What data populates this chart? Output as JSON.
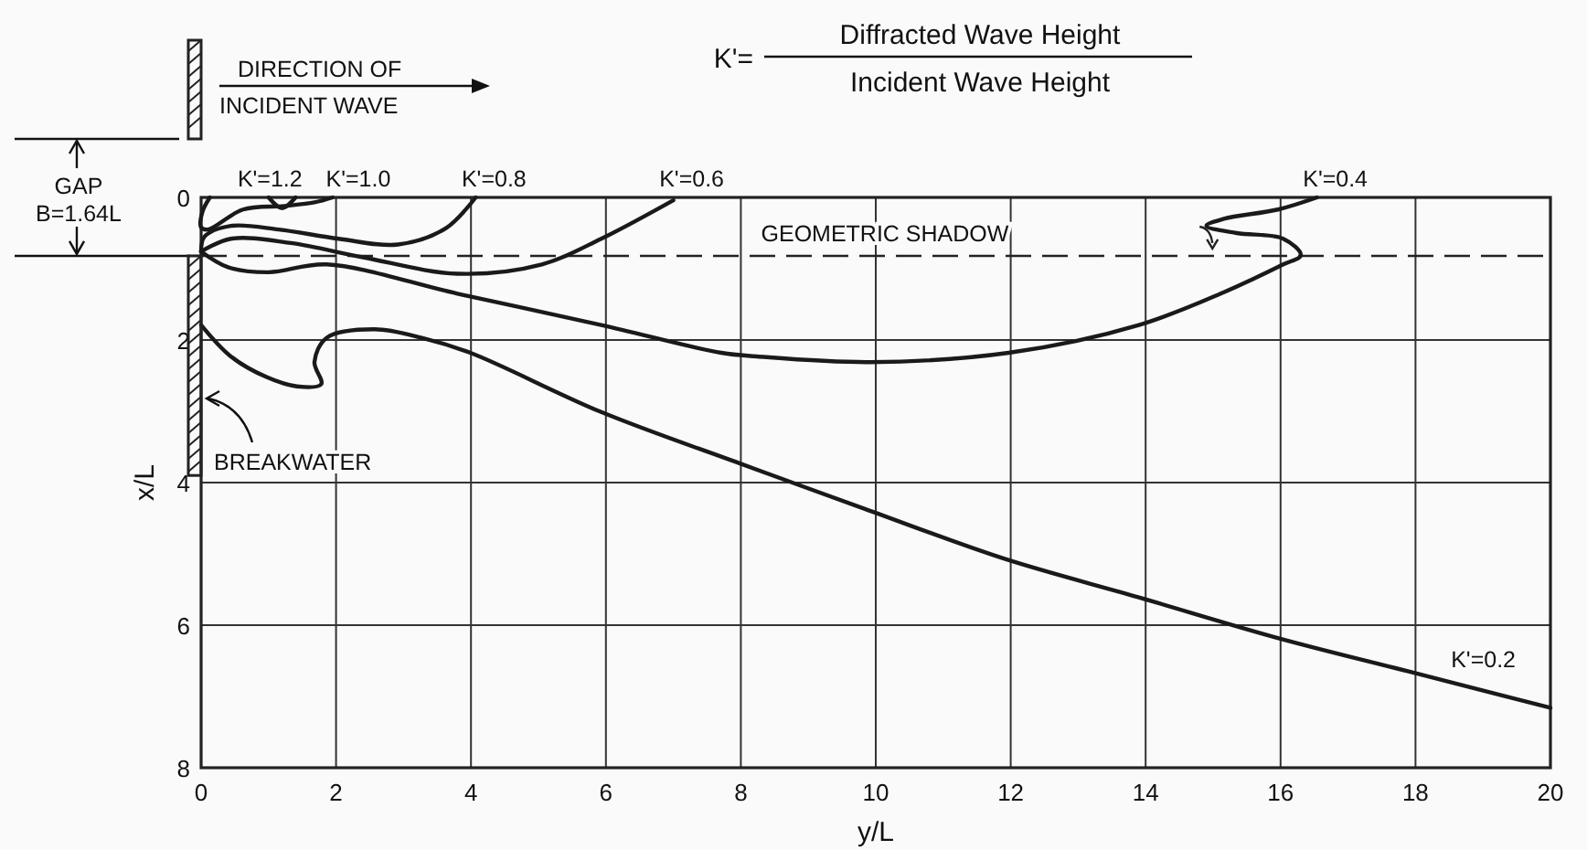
{
  "chart_data": {
    "type": "line",
    "title": "K'=",
    "xlabel": "y/L",
    "ylabel": "x/L",
    "annotations": [
      "Diffracted Wave Height",
      "Incident Wave Height",
      "DIRECTION OF",
      "INCIDENT WAVE",
      "GAP",
      "B=1.64L",
      "BREAKWATER"
    ],
    "xlim": [
      0,
      20
    ],
    "ylim": [
      8,
      0
    ],
    "xticks": [
      0,
      2,
      4,
      6,
      8,
      10,
      12,
      14,
      16,
      18,
      20
    ],
    "yticks": [
      0,
      2,
      4,
      6,
      8
    ],
    "grid": true,
    "line_style": "solid",
    "marker": "none",
    "ref_lines": [
      {
        "axis": "y",
        "value": 0.82,
        "label": "GEOMETRIC SHADOW",
        "line_style": "dashed",
        "color": "#222222"
      }
    ],
    "series": [
      {
        "name": "K'=1.2",
        "color": "#1a1a1a",
        "x": [
          1.0,
          1.2,
          1.4
        ],
        "values": [
          0,
          0.15,
          0
        ]
      },
      {
        "name": "K'=1.0",
        "color": "#1a1a1a",
        "x": [
          0.13,
          0.02,
          0,
          0.1,
          0.62,
          1.24,
          1.68,
          1.95
        ],
        "values": [
          0,
          0.2,
          0.42,
          0.45,
          0.17,
          0.12,
          0.07,
          0
        ]
      },
      {
        "name": "K'=0.8",
        "color": "#1a1a1a",
        "x": [
          0,
          0.05,
          0.44,
          1.15,
          2.04,
          2.92,
          3.63,
          4.07
        ],
        "values": [
          0.76,
          0.55,
          0.4,
          0.45,
          0.58,
          0.66,
          0.43,
          0
        ]
      },
      {
        "name": "K'=0.6",
        "color": "#1a1a1a",
        "x": [
          0,
          0.44,
          1.33,
          2.4,
          3.8,
          5.05,
          5.93,
          7.0
        ],
        "values": [
          0.76,
          0.58,
          0.64,
          0.84,
          1.07,
          0.94,
          0.58,
          0.04
        ]
      },
      {
        "name": "K'=0.4",
        "color": "#1a1a1a",
        "x": [
          0,
          0.4,
          1.0,
          1.86,
          3.8,
          5.93,
          7.71,
          8.24,
          9.92,
          11.97,
          13.9,
          15.16,
          16.04,
          16.3,
          16.04,
          15.35,
          14.9,
          15.16,
          15.96,
          16.54
        ],
        "values": [
          0.76,
          0.98,
          1.05,
          0.94,
          1.35,
          1.79,
          2.18,
          2.23,
          2.31,
          2.18,
          1.79,
          1.33,
          0.94,
          0.81,
          0.58,
          0.5,
          0.4,
          0.3,
          0.17,
          0
        ]
      },
      {
        "name": "K'=0.2",
        "color": "#1a1a1a",
        "x": [
          0,
          0.44,
          0.97,
          1.42,
          1.78,
          1.68,
          1.86,
          2.57,
          3.27,
          3.99,
          5.93,
          7.98,
          9.84,
          11.91,
          13.9,
          15.96,
          17.9,
          20
        ],
        "values": [
          1.79,
          2.23,
          2.52,
          2.65,
          2.62,
          2.31,
          1.97,
          1.85,
          1.97,
          2.18,
          3.01,
          3.73,
          4.37,
          5.07,
          5.61,
          6.18,
          6.65,
          7.16
        ]
      }
    ]
  }
}
